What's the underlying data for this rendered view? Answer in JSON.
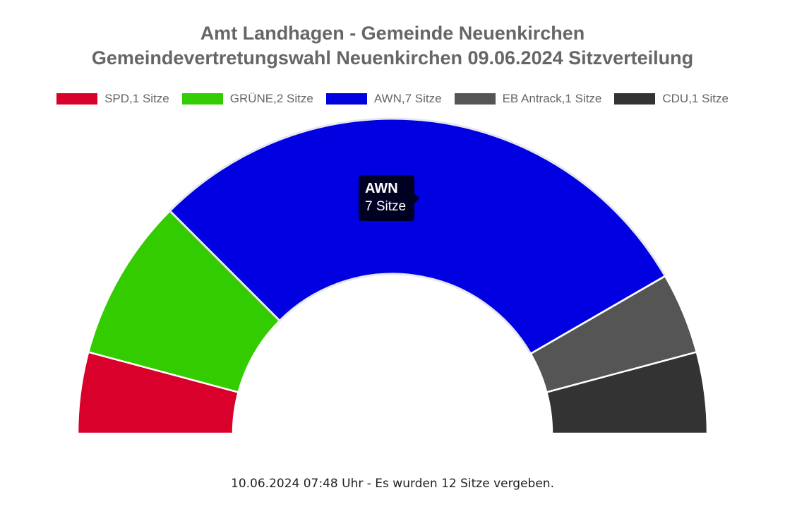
{
  "chart_data": {
    "type": "pie",
    "subtype": "half-doughnut",
    "title_lines": [
      "Amt Landhagen - Gemeinde Neuenkirchen",
      "Gemeindevertretungswahl Neuenkirchen 09.06.2024 Sitzverteilung"
    ],
    "legend_position": "top",
    "series": [
      {
        "name": "SPD",
        "value": 1,
        "legend_label": "SPD,1 Sitze",
        "color": "#d9002c"
      },
      {
        "name": "GRÜNE",
        "value": 2,
        "legend_label": "GRÜNE,2 Sitze",
        "color": "#33cc00"
      },
      {
        "name": "AWN",
        "value": 7,
        "legend_label": "AWN,7 Sitze",
        "color": "#0000e0"
      },
      {
        "name": "EB Antrack",
        "value": 1,
        "legend_label": "EB Antrack,1 Sitze",
        "color": "#555555"
      },
      {
        "name": "CDU",
        "value": 1,
        "legend_label": "CDU,1 Sitze",
        "color": "#333333"
      }
    ],
    "total": 12
  },
  "tooltip": {
    "title": "AWN",
    "body": "7 Sitze"
  },
  "footer": {
    "text": "10.06.2024 07:48 Uhr - Es wurden 12 Sitze vergeben."
  }
}
